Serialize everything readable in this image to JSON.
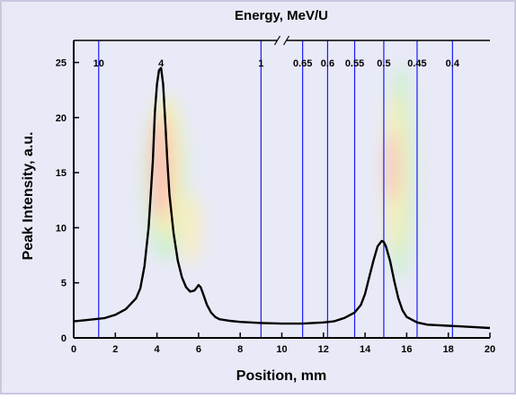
{
  "chart_data": {
    "type": "line",
    "title": "Energy, MeV/U",
    "xlabel": "Position, mm",
    "ylabel": "Peak Intensity, a.u.",
    "xlim": [
      0,
      20
    ],
    "ylim": [
      0,
      27
    ],
    "x_ticks": [
      0,
      2,
      4,
      6,
      8,
      10,
      12,
      14,
      16,
      18,
      20
    ],
    "y_ticks": [
      0,
      5,
      10,
      15,
      20,
      25
    ],
    "grid": false,
    "colors": {
      "background": "#e9eaf7",
      "frame": "#c8c8e0",
      "curve": "#000000",
      "marker_line": "#1a1aff",
      "heat_core": "#ffb4b4",
      "heat_mid": "#fff0b0",
      "heat_outer": "#c8f0c8"
    },
    "energy_markers": [
      {
        "label": "10",
        "x": 1.2
      },
      {
        "label": "4",
        "x": 4.2
      },
      {
        "label": "1",
        "x": 9.0
      },
      {
        "label": "0.65",
        "x": 11.0
      },
      {
        "label": "0.6",
        "x": 12.2
      },
      {
        "label": "0.55",
        "x": 13.5
      },
      {
        "label": "0.5",
        "x": 14.9
      },
      {
        "label": "0.45",
        "x": 16.5
      },
      {
        "label": "0.4",
        "x": 18.2
      }
    ],
    "marker_lines_x": [
      1.2,
      9.0,
      11.0,
      12.2,
      13.5,
      14.9,
      16.5,
      18.2
    ],
    "axis_break_at_x": 10.0,
    "series": [
      {
        "x": [
          0,
          0.5,
          1.0,
          1.5,
          2.0,
          2.5,
          3.0,
          3.2,
          3.4,
          3.6,
          3.8,
          3.9,
          4.0,
          4.1,
          4.2,
          4.3,
          4.4,
          4.5,
          4.6,
          4.8,
          5.0,
          5.2,
          5.4,
          5.6,
          5.8,
          6.0,
          6.1,
          6.2,
          6.4,
          6.6,
          6.8,
          7.0,
          7.5,
          8.0,
          8.5,
          9.0,
          10.0,
          11.0,
          12.0,
          12.5,
          13.0,
          13.5,
          13.8,
          14.0,
          14.2,
          14.4,
          14.6,
          14.8,
          14.9,
          15.0,
          15.2,
          15.4,
          15.6,
          15.8,
          16.0,
          16.5,
          17.0,
          18.0,
          19.0,
          20.0
        ],
        "y": [
          1.5,
          1.6,
          1.7,
          1.8,
          2.1,
          2.6,
          3.6,
          4.5,
          6.5,
          10.0,
          16.0,
          20.5,
          23.0,
          24.3,
          24.5,
          23.0,
          19.5,
          16.0,
          13.0,
          9.5,
          7.0,
          5.5,
          4.6,
          4.2,
          4.3,
          4.8,
          4.6,
          4.1,
          3.0,
          2.3,
          1.9,
          1.7,
          1.55,
          1.45,
          1.4,
          1.35,
          1.3,
          1.3,
          1.4,
          1.5,
          1.8,
          2.3,
          3.0,
          4.0,
          5.5,
          7.0,
          8.3,
          8.8,
          8.7,
          8.3,
          7.0,
          5.2,
          3.6,
          2.5,
          1.9,
          1.4,
          1.2,
          1.1,
          1.0,
          0.9
        ]
      }
    ]
  }
}
